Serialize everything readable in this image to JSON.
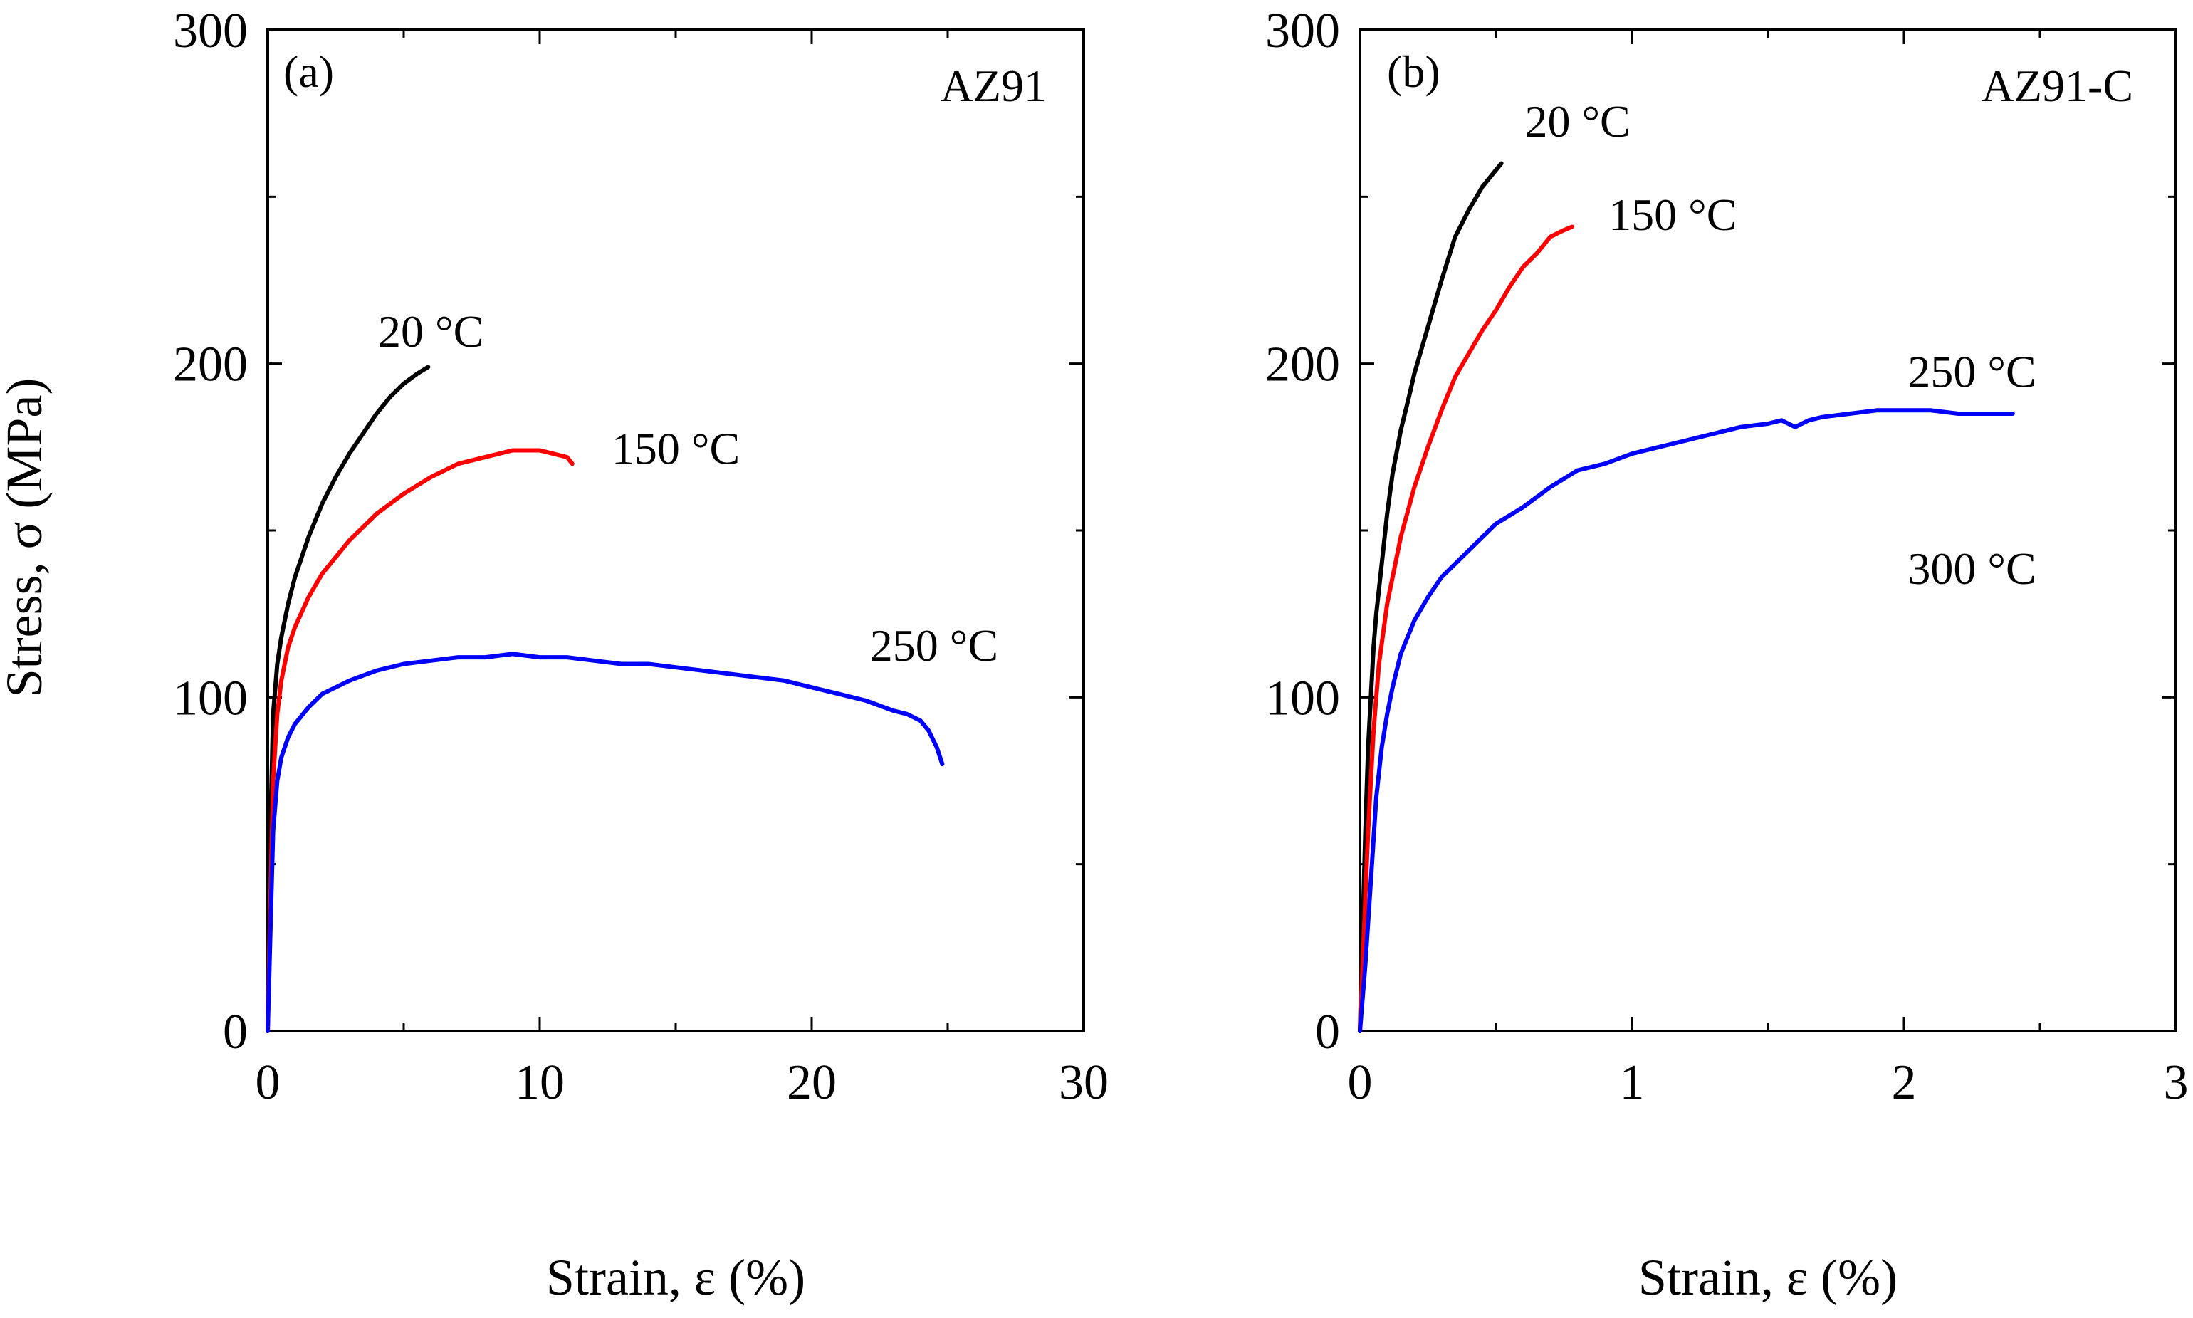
{
  "chart_data": [
    {
      "type": "line",
      "panel_label": "(a)",
      "title": "AZ91",
      "xlabel": "Strain, ε (%)",
      "ylabel": "Stress, σ (MPa)",
      "xlim": [
        0,
        30
      ],
      "ylim": [
        0,
        300
      ],
      "xticks": [
        0,
        10,
        20,
        30
      ],
      "yticks": [
        0,
        100,
        200,
        300
      ],
      "xticks_minor": 5,
      "yticks_minor": 50,
      "series": [
        {
          "name": "20 °C",
          "color": "#000000",
          "label_pos": [
            6,
            205
          ],
          "x": [
            0,
            0.1,
            0.2,
            0.35,
            0.5,
            0.75,
            1.0,
            1.5,
            2.0,
            2.5,
            3.0,
            3.5,
            4.0,
            4.5,
            5.0,
            5.5,
            5.9
          ],
          "y": [
            0,
            60,
            95,
            110,
            118,
            128,
            136,
            148,
            158,
            166,
            173,
            179,
            185,
            190,
            194,
            197,
            199
          ]
        },
        {
          "name": "150 °C",
          "color": "#ff0000",
          "label_pos": [
            15,
            170
          ],
          "x": [
            0,
            0.1,
            0.2,
            0.35,
            0.5,
            0.75,
            1.0,
            1.5,
            2.0,
            3.0,
            4.0,
            5.0,
            6.0,
            7.0,
            8.0,
            9.0,
            10.0,
            10.5,
            11.0,
            11.2
          ],
          "y": [
            0,
            40,
            75,
            95,
            105,
            115,
            121,
            130,
            137,
            147,
            155,
            161,
            166,
            170,
            172,
            174,
            174,
            173,
            172,
            170
          ]
        },
        {
          "name": "250 °C",
          "color": "#0000ff",
          "label_pos": [
            24.5,
            111
          ],
          "x": [
            0,
            0.1,
            0.2,
            0.35,
            0.5,
            0.75,
            1.0,
            1.5,
            2.0,
            3.0,
            4.0,
            5.0,
            6.0,
            7.0,
            8.0,
            9.0,
            10.0,
            11.0,
            12.0,
            13.0,
            14.0,
            15.0,
            16.0,
            17.0,
            18.0,
            19.0,
            20.0,
            21.0,
            22.0,
            23.0,
            23.5,
            24.0,
            24.3,
            24.6,
            24.8
          ],
          "y": [
            0,
            30,
            60,
            75,
            82,
            88,
            92,
            97,
            101,
            105,
            108,
            110,
            111,
            112,
            112,
            113,
            112,
            112,
            111,
            110,
            110,
            109,
            108,
            107,
            106,
            105,
            103,
            101,
            99,
            96,
            95,
            93,
            90,
            85,
            80
          ]
        }
      ]
    },
    {
      "type": "line",
      "panel_label": "(b)",
      "title": "AZ91-C",
      "xlabel": "Strain, ε (%)",
      "ylabel": "",
      "xlim": [
        0,
        3
      ],
      "ylim": [
        0,
        300
      ],
      "xticks": [
        0,
        1,
        2,
        3
      ],
      "yticks": [
        0,
        100,
        200,
        300
      ],
      "xticks_minor": 0.5,
      "yticks_minor": 50,
      "series": [
        {
          "name": "20 °C",
          "color": "#000000",
          "label_pos": [
            0.8,
            268
          ],
          "x": [
            0,
            0.01,
            0.02,
            0.03,
            0.04,
            0.05,
            0.06,
            0.08,
            0.1,
            0.12,
            0.15,
            0.18,
            0.2,
            0.25,
            0.3,
            0.35,
            0.4,
            0.45,
            0.5,
            0.52
          ],
          "y": [
            0,
            30,
            60,
            85,
            100,
            115,
            125,
            140,
            155,
            167,
            180,
            190,
            197,
            211,
            225,
            238,
            246,
            253,
            258,
            260
          ]
        },
        {
          "name": "150 °C",
          "color": "#ff0000",
          "label_pos": [
            1.15,
            240
          ],
          "x": [
            0,
            0.01,
            0.02,
            0.03,
            0.05,
            0.07,
            0.1,
            0.15,
            0.2,
            0.25,
            0.3,
            0.35,
            0.4,
            0.45,
            0.5,
            0.55,
            0.6,
            0.65,
            0.7,
            0.75,
            0.78
          ],
          "y": [
            0,
            20,
            40,
            60,
            90,
            110,
            128,
            148,
            163,
            175,
            186,
            196,
            203,
            210,
            216,
            223,
            229,
            233,
            238,
            240,
            241
          ]
        },
        {
          "name": "250 °C",
          "color": "#0000ff",
          "label_pos": [
            2.25,
            193
          ],
          "x": [
            0,
            0.02,
            0.04,
            0.06,
            0.08,
            0.1,
            0.12,
            0.15,
            0.2,
            0.25,
            0.3,
            0.4,
            0.5,
            0.6,
            0.7,
            0.8,
            0.9,
            1.0,
            1.1,
            1.2,
            1.3,
            1.4,
            1.5,
            1.55,
            1.6,
            1.65,
            1.7,
            1.8,
            1.9,
            2.0,
            2.1,
            2.2,
            2.3,
            2.4
          ],
          "y": [
            0,
            20,
            45,
            70,
            85,
            95,
            103,
            113,
            123,
            130,
            136,
            144,
            152,
            157,
            163,
            168,
            170,
            173,
            175,
            177,
            179,
            181,
            182,
            183,
            181,
            183,
            184,
            185,
            186,
            186,
            186,
            185,
            185,
            185
          ]
        },
        {
          "name": "300 °C",
          "color": "#0000ff",
          "label_pos": [
            2.25,
            134
          ],
          "x": [],
          "y": []
        }
      ]
    }
  ]
}
